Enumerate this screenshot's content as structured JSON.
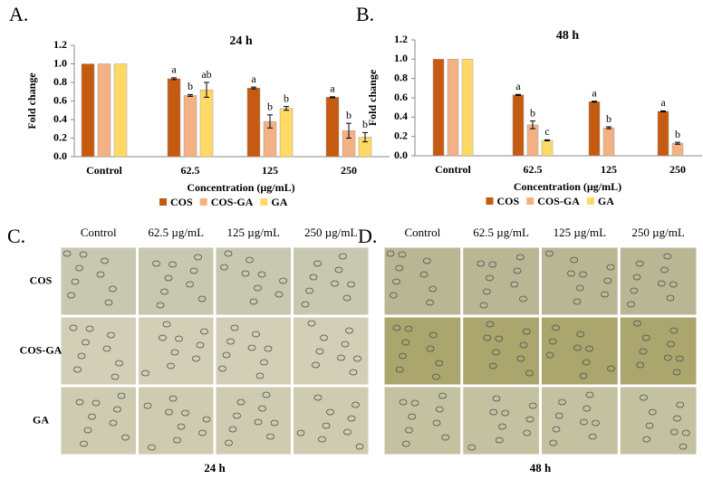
{
  "chart_data": [
    {
      "type": "bar",
      "panel": "A.",
      "title": "24 h",
      "ylabel": "Fold change",
      "xlabel": "Concentration (µg/mL)",
      "categories": [
        "Control",
        "62.5",
        "125",
        "250"
      ],
      "ylim": [
        0,
        1.2
      ],
      "yticks": [
        {
          "value": 0,
          "label": "0.0"
        },
        0.2,
        0.4,
        0.6,
        0.8,
        {
          "value": 1,
          "label": "1.0"
        },
        1.2
      ],
      "series": [
        {
          "name": "COS",
          "color": "#c55a11",
          "values": [
            1.0,
            0.84,
            0.74,
            0.64
          ],
          "errors": [
            0,
            0.01,
            0.01,
            0.005
          ],
          "labels": [
            null,
            "a",
            "a",
            "a"
          ]
        },
        {
          "name": "COS-GA",
          "color": "#f4b183",
          "values": [
            1.0,
            0.66,
            0.38,
            0.28
          ],
          "errors": [
            0,
            0.01,
            0.07,
            0.08
          ],
          "labels": [
            null,
            "b",
            "b",
            "b"
          ]
        },
        {
          "name": "GA",
          "color": "#ffd966",
          "values": [
            1.0,
            0.72,
            0.52,
            0.21
          ],
          "errors": [
            0,
            0.08,
            0.02,
            0.05
          ],
          "labels": [
            null,
            "ab",
            "b",
            "b"
          ]
        }
      ]
    },
    {
      "type": "bar",
      "panel": "B.",
      "title": "48 h",
      "ylabel": "Fold change",
      "xlabel": "Concentration (µg/mL)",
      "categories": [
        "Control",
        "62.5",
        "125",
        "250"
      ],
      "ylim": [
        0,
        1.2
      ],
      "yticks": [
        {
          "value": 0,
          "label": "0.0"
        },
        0.2,
        0.4,
        0.6,
        0.8,
        {
          "value": 1,
          "label": "1.0"
        },
        1.2
      ],
      "series": [
        {
          "name": "COS",
          "color": "#c55a11",
          "values": [
            1.0,
            0.63,
            0.56,
            0.46
          ],
          "errors": [
            0,
            0.005,
            0.005,
            0.005
          ],
          "labels": [
            null,
            "a",
            "a",
            "a"
          ]
        },
        {
          "name": "COS-GA",
          "color": "#f4b183",
          "values": [
            1.0,
            0.32,
            0.29,
            0.13
          ],
          "errors": [
            0,
            0.04,
            0.01,
            0.01
          ],
          "labels": [
            null,
            "b",
            "b",
            "b"
          ]
        },
        {
          "name": "GA",
          "color": "#ffd966",
          "values": [
            1.0,
            0.16,
            null,
            null
          ],
          "errors": [
            0,
            0.005,
            null,
            null
          ],
          "labels": [
            null,
            "c",
            null,
            null
          ]
        }
      ]
    }
  ],
  "panels": [
    {
      "letter": "C.",
      "columns": [
        "Control",
        "62.5 µg/mL",
        "125 µg/mL",
        "250 µg/mL"
      ],
      "rows": [
        "COS",
        "COS-GA",
        "GA"
      ],
      "caption": "24 h"
    },
    {
      "letter": "D.",
      "columns": [
        "Control",
        "62.5 µg/mL",
        "125 µg/mL",
        "250 µg/mL"
      ],
      "caption": "48 h"
    }
  ]
}
